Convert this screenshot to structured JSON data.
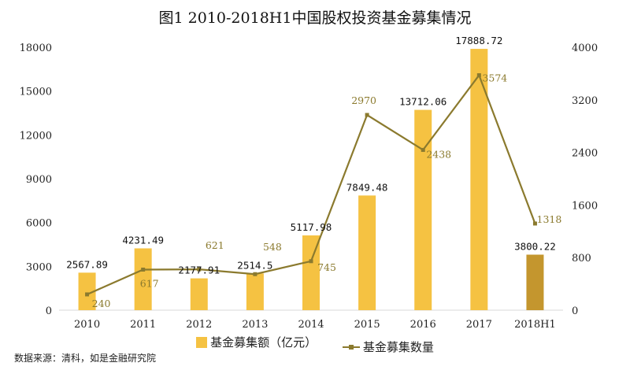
{
  "chart_data": {
    "type": "bar+line",
    "title": "图1  2010-2018H1中国股权投资基金募集情况",
    "categories": [
      "2010",
      "2011",
      "2012",
      "2013",
      "2014",
      "2015",
      "2016",
      "2017",
      "2018H1"
    ],
    "series": [
      {
        "name": "基金募集额（亿元）",
        "type": "bar",
        "axis": "left",
        "values": [
          2567.89,
          4231.49,
          2177.91,
          2514.5,
          5117.98,
          7849.48,
          13712.06,
          17888.72,
          3800.22
        ],
        "labels": [
          "2567.89",
          "4231.49",
          "2177.91",
          "2514.5",
          "5117.98",
          "7849.48",
          "13712.06",
          "17888.72",
          "3800.22"
        ],
        "color": "#F5C242",
        "highlight_color": "#C4962E"
      },
      {
        "name": "基金募集数量",
        "type": "line",
        "axis": "right",
        "values": [
          240,
          617,
          621,
          548,
          745,
          2970,
          2438,
          3574,
          1318
        ],
        "labels": [
          "240",
          "617",
          "621",
          "548",
          "745",
          "2970",
          "2438",
          "3574",
          "1318"
        ],
        "color": "#8B7A2E"
      }
    ],
    "y_left": {
      "range": [
        0,
        18000
      ],
      "ticks": [
        "0",
        "3000",
        "6000",
        "9000",
        "12000",
        "15000",
        "18000"
      ]
    },
    "y_right": {
      "range": [
        0,
        4000
      ],
      "ticks": [
        "0",
        "800",
        "1600",
        "2400",
        "3200",
        "4000"
      ]
    },
    "grid": false,
    "legend": "bottom"
  },
  "source": "数据来源：清科，如是金融研究院"
}
